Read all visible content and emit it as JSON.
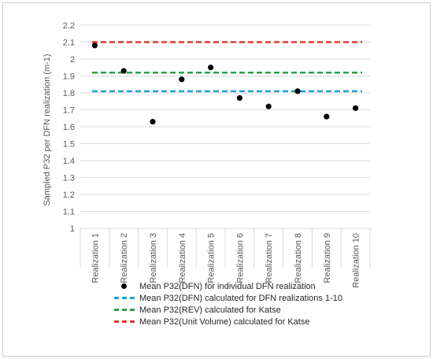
{
  "chart_data": {
    "type": "scatter",
    "title": "",
    "xlabel": "",
    "ylabel": "Sampled P32 per DFN realization (m-1)",
    "ylim": [
      1,
      2.2
    ],
    "yticks": [
      "1",
      "1.1",
      "1.2",
      "1.3",
      "1.4",
      "1.5",
      "1.6",
      "1.7",
      "1.8",
      "1.9",
      "2",
      "2.1",
      "2.2"
    ],
    "categories": [
      "Realization 1",
      "Realization 2",
      "Realization 3",
      "Realization 4",
      "Realization 5",
      "Realization 6",
      "Realization 7",
      "Realization 8",
      "Realization 9",
      "Realization 10"
    ],
    "grid": "horizontal",
    "legend_position": "bottom",
    "series": [
      {
        "name": "Mean P32(DFN) for individual DFN realization",
        "kind": "points",
        "color": "#000000",
        "values": [
          2.08,
          1.93,
          1.63,
          1.88,
          1.95,
          1.77,
          1.72,
          1.81,
          1.66,
          1.71
        ]
      },
      {
        "name": "Mean P32(DFN) calculated for DFN realizations 1-10",
        "kind": "hline",
        "color": "#1aa3d9",
        "value": 1.81
      },
      {
        "name": "Mean P32(REV) calculated for Katse",
        "kind": "hline",
        "color": "#2ea043",
        "value": 1.92
      },
      {
        "name": "Mean P32(Unit Volume) calculated for Katse",
        "kind": "hline",
        "color": "#e03a2f",
        "value": 2.1
      }
    ]
  }
}
